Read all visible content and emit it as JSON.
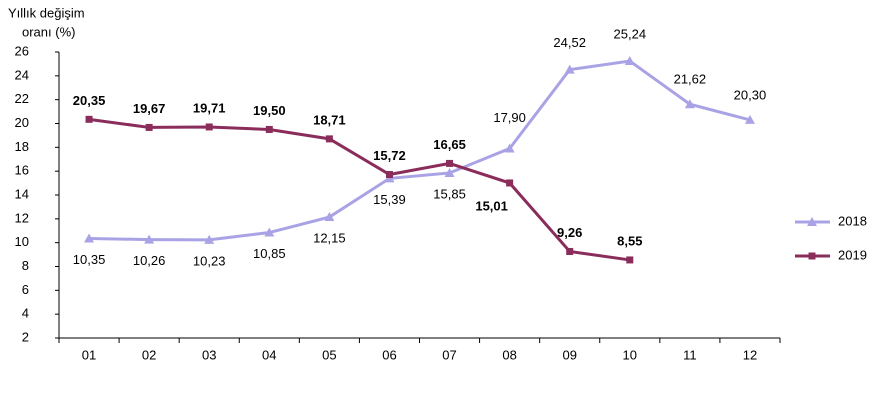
{
  "chart_data": {
    "type": "line",
    "ylabel": [
      "Yıllık  değişim",
      "oranı (%)"
    ],
    "categories": [
      "01",
      "02",
      "03",
      "04",
      "05",
      "06",
      "07",
      "08",
      "09",
      "10",
      "11",
      "12"
    ],
    "series": [
      {
        "name": "2018",
        "color": "#a9a3e6",
        "marker": "triangle",
        "values": [
          10.35,
          10.26,
          10.23,
          10.85,
          12.15,
          15.39,
          15.85,
          17.9,
          24.52,
          25.24,
          21.62,
          20.3
        ],
        "value_labels": [
          "10,35",
          "10,26",
          "10,23",
          "10,85",
          "12,15",
          "15,39",
          "15,85",
          "17,90",
          "24,52",
          "25,24",
          "21,62",
          "20,30"
        ]
      },
      {
        "name": "2019",
        "color": "#8b2d5b",
        "marker": "square",
        "values": [
          20.35,
          19.67,
          19.71,
          19.5,
          18.71,
          15.72,
          16.65,
          15.01,
          9.26,
          8.55,
          null,
          null
        ],
        "value_labels": [
          "20,35",
          "19,67",
          "19,71",
          "19,50",
          "18,71",
          "15,72",
          "16,65",
          "15,01",
          "9,26",
          "8,55",
          null,
          null
        ]
      }
    ],
    "ylim": [
      2,
      26
    ],
    "yticks": [
      2,
      4,
      6,
      8,
      10,
      12,
      14,
      16,
      18,
      20,
      22,
      24,
      26
    ],
    "grid": false,
    "legend": "right"
  }
}
